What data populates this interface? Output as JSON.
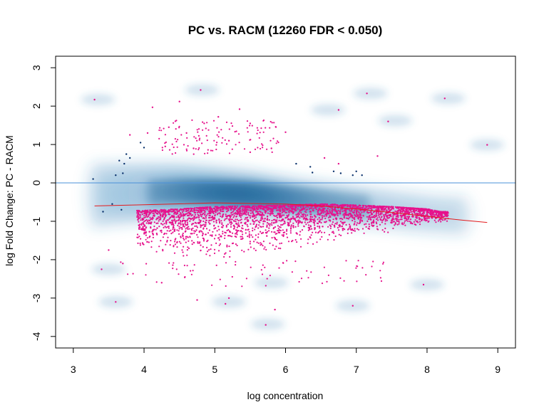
{
  "chart_data": {
    "type": "scatter",
    "title": "PC vs. RACM (12260 FDR < 0.050)",
    "xlabel": "log concentration",
    "ylabel": "log Fold Change: PC - RACM",
    "xlim": [
      2.75,
      9.25
    ],
    "ylim": [
      -4.3,
      3.3
    ],
    "x_ticks": [
      3,
      4,
      5,
      6,
      7,
      8,
      9
    ],
    "y_ticks": [
      -4,
      -3,
      -2,
      -1,
      0,
      1,
      2,
      3
    ],
    "reference_line_y": 0,
    "grid": false,
    "legend": "none",
    "colors": {
      "significant": "#e6128c",
      "nonsignificant": "#08306b",
      "density": "#2c7fb8",
      "reference_line": "#4a90d9",
      "fit_line": "#e31a1c"
    },
    "series": [
      {
        "name": "FDR < 0.050",
        "sampled": true,
        "points": [
          [
            3.3,
            2.17
          ],
          [
            4.12,
            1.97
          ],
          [
            4.8,
            2.42
          ],
          [
            4.5,
            2.12
          ],
          [
            5.05,
            1.72
          ],
          [
            5.35,
            1.92
          ],
          [
            5.5,
            1.55
          ],
          [
            6.0,
            1.32
          ],
          [
            7.15,
            2.33
          ],
          [
            6.75,
            1.9
          ],
          [
            7.45,
            1.6
          ],
          [
            8.25,
            2.2
          ],
          [
            8.85,
            0.99
          ],
          [
            7.3,
            0.7
          ],
          [
            6.55,
            0.65
          ],
          [
            6.75,
            0.5
          ],
          [
            4.35,
            1.45
          ],
          [
            4.6,
            1.3
          ],
          [
            4.85,
            1.55
          ],
          [
            4.7,
            0.9
          ],
          [
            5.2,
            1.1
          ],
          [
            5.5,
            0.8
          ],
          [
            5.8,
            0.9
          ],
          [
            4.3,
            0.95
          ],
          [
            3.8,
            1.25
          ],
          [
            4.05,
            1.3
          ],
          [
            3.4,
            -2.25
          ],
          [
            3.6,
            -3.1
          ],
          [
            4.25,
            -2.6
          ],
          [
            4.75,
            -3.05
          ],
          [
            5.15,
            -3.15
          ],
          [
            5.2,
            -3.0
          ],
          [
            5.85,
            -3.3
          ],
          [
            5.72,
            -3.7
          ],
          [
            6.95,
            -3.2
          ],
          [
            7.95,
            -2.65
          ],
          [
            3.5,
            -1.75
          ],
          [
            3.7,
            -2.1
          ]
        ]
      },
      {
        "name": "not significant",
        "sampled": true,
        "points": [
          [
            3.28,
            0.1
          ],
          [
            3.6,
            0.2
          ],
          [
            3.7,
            0.25
          ],
          [
            3.72,
            0.5
          ],
          [
            3.75,
            0.75
          ],
          [
            3.8,
            0.65
          ],
          [
            3.95,
            1.05
          ],
          [
            4.0,
            0.92
          ],
          [
            3.65,
            0.58
          ],
          [
            6.15,
            0.5
          ],
          [
            6.35,
            0.42
          ],
          [
            6.38,
            0.27
          ],
          [
            6.68,
            0.3
          ],
          [
            6.78,
            0.25
          ],
          [
            6.95,
            0.2
          ],
          [
            7.0,
            0.3
          ],
          [
            7.08,
            0.2
          ],
          [
            3.42,
            -0.75
          ],
          [
            3.55,
            -0.55
          ],
          [
            3.68,
            -0.7
          ]
        ]
      }
    ],
    "density_band": {
      "x": [
        3.2,
        3.5,
        4.0,
        4.5,
        5.0,
        5.5,
        6.0,
        6.5,
        7.0,
        7.5,
        8.0,
        8.4
      ],
      "center": [
        -0.35,
        -0.3,
        -0.25,
        -0.22,
        -0.25,
        -0.3,
        -0.4,
        -0.5,
        -0.6,
        -0.7,
        -0.8,
        -0.85
      ]
    },
    "significant_band": {
      "x": [
        4.0,
        4.5,
        5.0,
        5.5,
        6.0,
        6.5,
        7.0,
        7.5,
        8.0,
        8.2
      ],
      "upper": [
        -0.72,
        -0.68,
        -0.62,
        -0.6,
        -0.58,
        -0.55,
        -0.58,
        -0.62,
        -0.68,
        -0.75
      ],
      "lower": [
        -1.75,
        -2.0,
        -2.05,
        -2.0,
        -1.85,
        -1.65,
        -1.45,
        -1.3,
        -1.1,
        -1.05
      ]
    },
    "fit_line": {
      "x": [
        3.3,
        4.0,
        5.0,
        6.0,
        6.5,
        7.0,
        7.5,
        8.0,
        8.5,
        8.85
      ],
      "y": [
        -0.6,
        -0.57,
        -0.52,
        -0.55,
        -0.6,
        -0.68,
        -0.77,
        -0.87,
        -0.97,
        -1.03
      ]
    }
  }
}
